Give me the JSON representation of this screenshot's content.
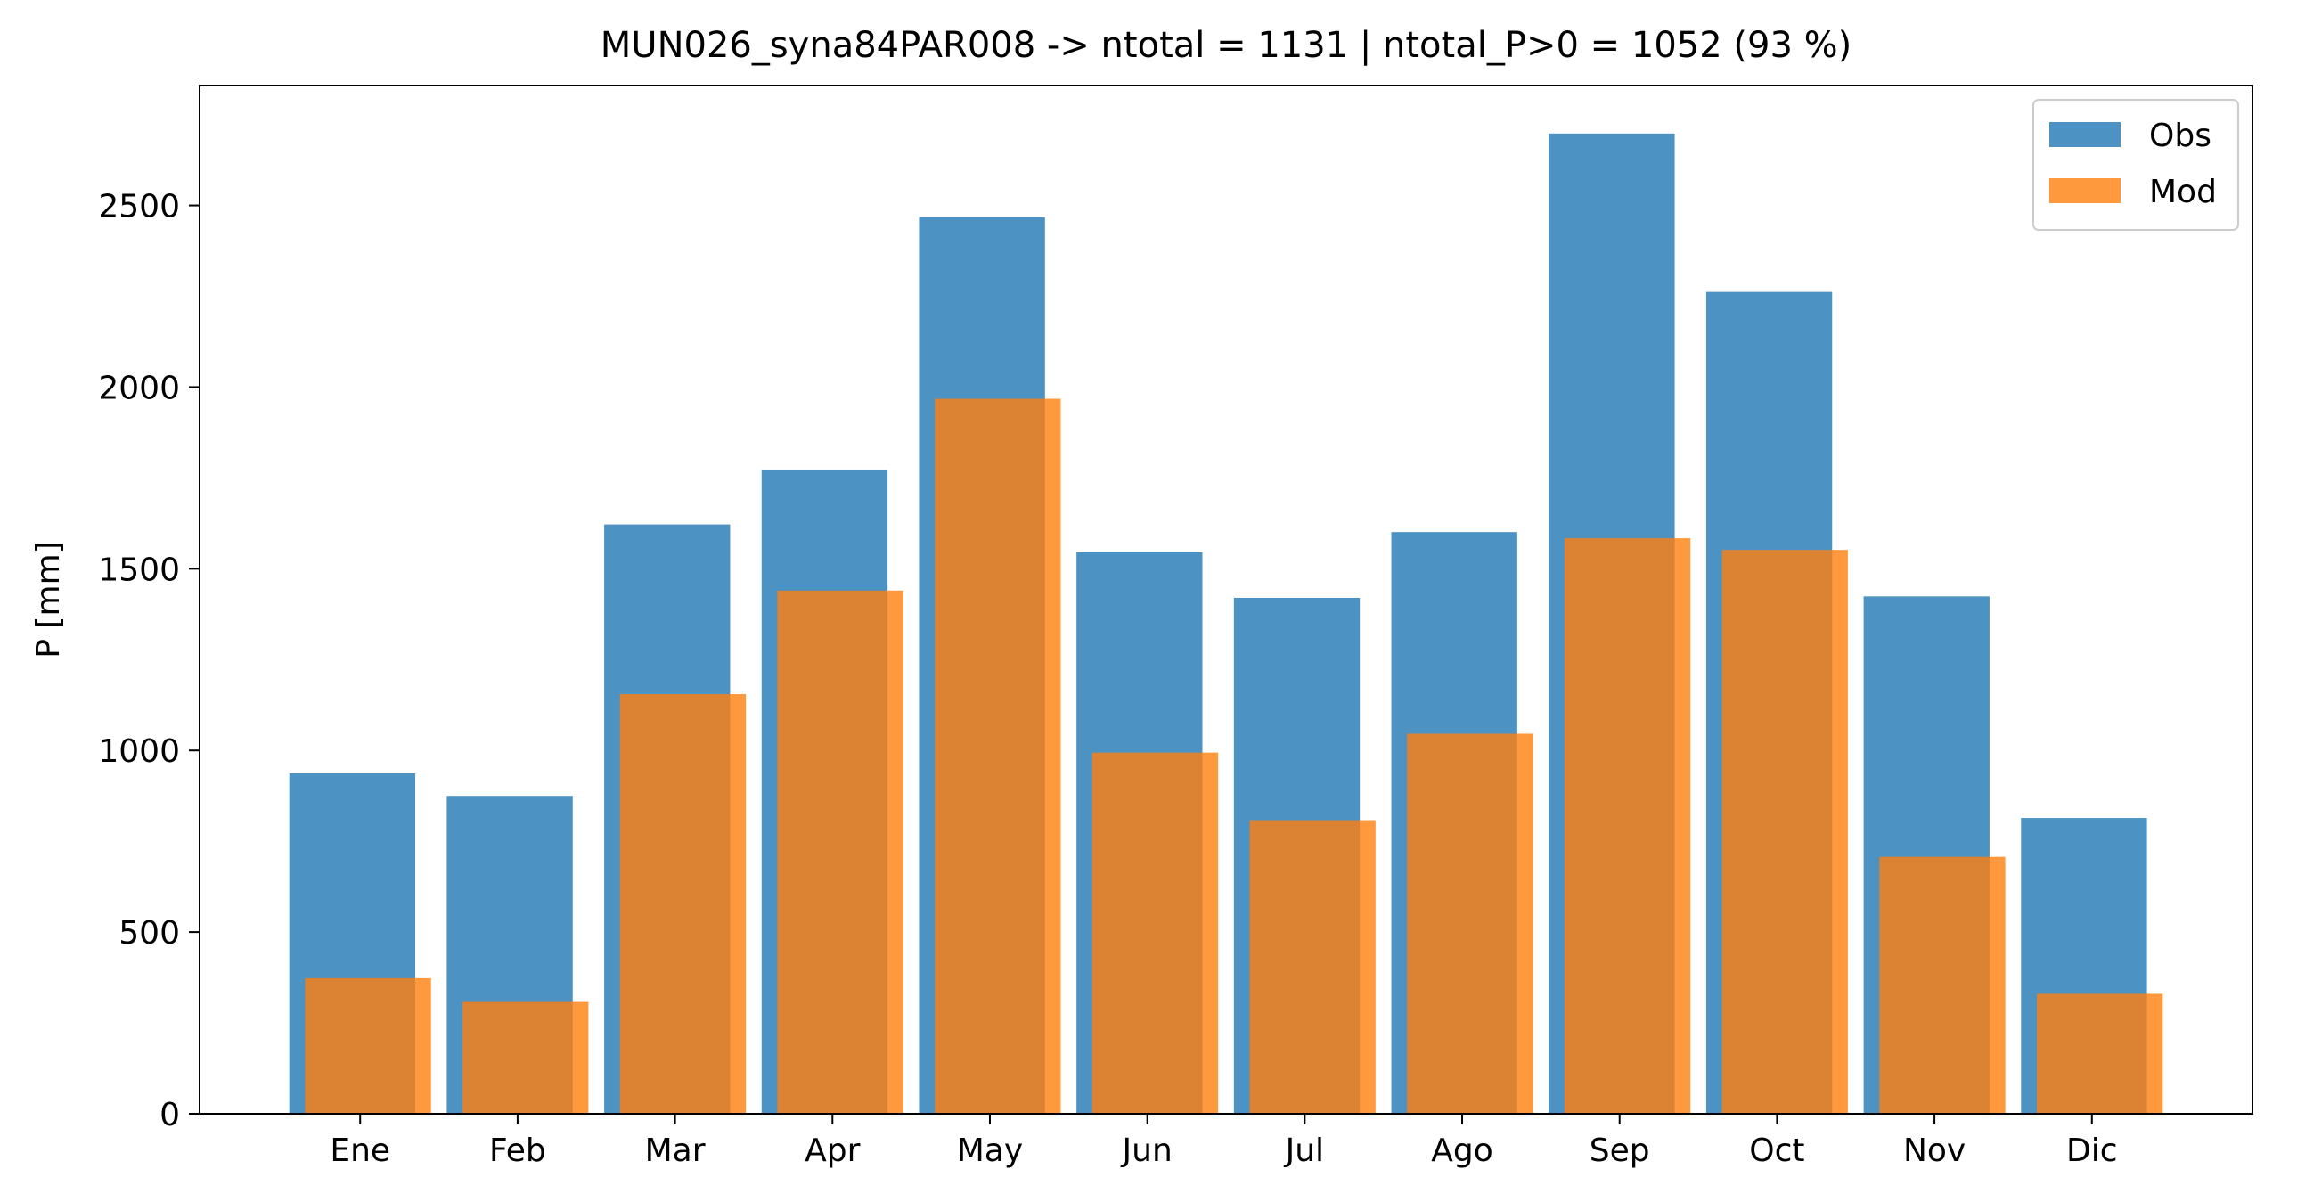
{
  "chart_data": {
    "type": "bar",
    "title": "MUN026_syna84PAR008 -> ntotal = 1131 | ntotal_P>0 = 1052 (93 %)",
    "xlabel": "",
    "ylabel": "P [mm]",
    "categories": [
      "Ene",
      "Feb",
      "Mar",
      "Apr",
      "May",
      "Jun",
      "Jul",
      "Ago",
      "Sep",
      "Oct",
      "Nov",
      "Dic"
    ],
    "series": [
      {
        "name": "Obs",
        "color": "#1f77b4",
        "opacity": 0.8,
        "values": [
          937,
          875,
          1622,
          1771,
          2468,
          1545,
          1420,
          1601,
          2698,
          2262,
          1424,
          814
        ]
      },
      {
        "name": "Mod",
        "color": "#ff7f0e",
        "opacity": 0.8,
        "values": [
          373,
          310,
          1155,
          1440,
          1968,
          994,
          808,
          1046,
          1584,
          1552,
          707,
          330
        ]
      }
    ],
    "ylim": [
      0,
      2830
    ],
    "yticks": [
      0,
      500,
      1000,
      1500,
      2000,
      2500
    ],
    "grid": false,
    "legend_position": "top-right"
  }
}
